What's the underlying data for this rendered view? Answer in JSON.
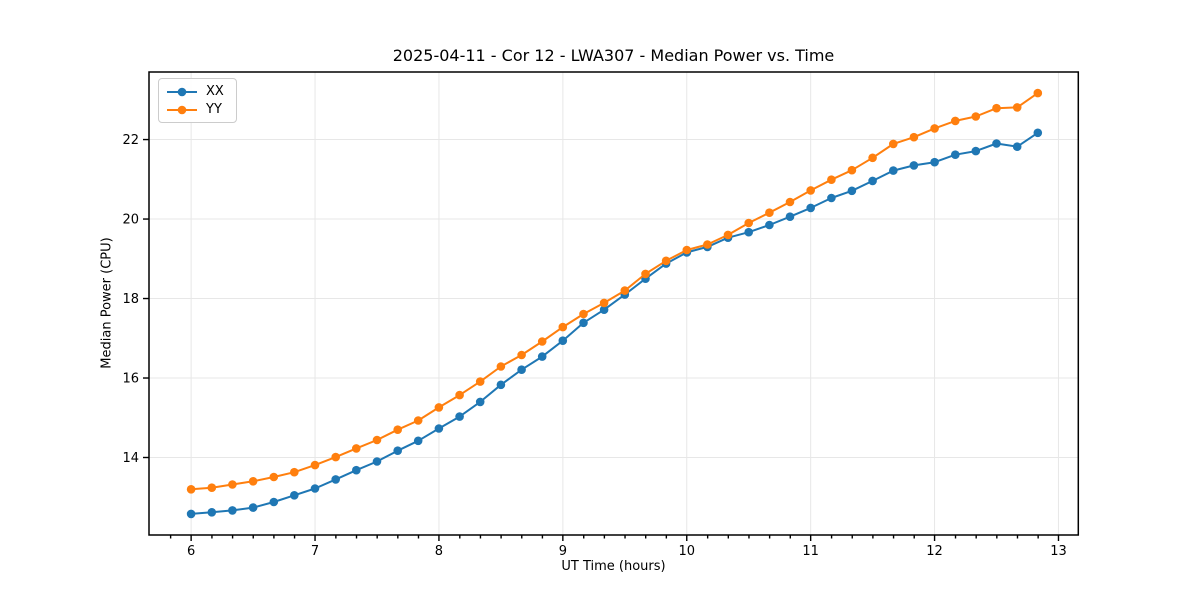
{
  "figure_title": "2025-04-11 - Cor 12 - LWA307 - Median Power vs. Time",
  "chart_data": {
    "type": "line",
    "title": "2025-04-11 - Cor 12 - LWA307 - Median Power vs. Time",
    "xlabel": "UT Time (hours)",
    "ylabel": "Median Power (CPU)",
    "xlim": [
      5.66,
      13.16
    ],
    "ylim": [
      12.05,
      23.7
    ],
    "x_ticks": [
      6,
      7,
      8,
      9,
      10,
      11,
      12,
      13
    ],
    "y_ticks": [
      14,
      16,
      18,
      20,
      22
    ],
    "x_minor_tick_step": 0.1667,
    "grid": true,
    "grid_color": "#e7e7e7",
    "legend_position": "upper-left",
    "marker": "circle",
    "x": [
      6.0,
      6.167,
      6.333,
      6.5,
      6.667,
      6.833,
      7.0,
      7.167,
      7.333,
      7.5,
      7.667,
      7.833,
      8.0,
      8.167,
      8.333,
      8.5,
      8.667,
      8.833,
      9.0,
      9.167,
      9.333,
      9.5,
      9.667,
      9.833,
      10.0,
      10.167,
      10.333,
      10.5,
      10.667,
      10.833,
      11.0,
      11.167,
      11.333,
      11.5,
      11.667,
      11.833,
      12.0,
      12.167,
      12.333,
      12.5,
      12.667,
      12.833
    ],
    "series": [
      {
        "name": "XX",
        "color": "#1f77b4",
        "values": [
          12.58,
          12.62,
          12.67,
          12.74,
          12.88,
          13.05,
          13.22,
          13.45,
          13.68,
          13.9,
          14.17,
          14.42,
          14.73,
          15.03,
          15.4,
          15.83,
          16.21,
          16.54,
          16.94,
          17.39,
          17.72,
          18.1,
          18.5,
          18.88,
          19.16,
          19.3,
          19.53,
          19.67,
          19.85,
          20.06,
          20.28,
          20.53,
          20.71,
          20.96,
          21.22,
          21.35,
          21.43,
          21.62,
          21.71,
          21.9,
          21.82,
          22.17
        ]
      },
      {
        "name": "YY",
        "color": "#ff7f0e",
        "values": [
          13.2,
          13.24,
          13.32,
          13.4,
          13.51,
          13.63,
          13.81,
          14.01,
          14.23,
          14.44,
          14.7,
          14.93,
          15.26,
          15.57,
          15.91,
          16.29,
          16.58,
          16.92,
          17.28,
          17.61,
          17.89,
          18.2,
          18.62,
          18.95,
          19.22,
          19.36,
          19.6,
          19.9,
          20.16,
          20.43,
          20.72,
          20.99,
          21.23,
          21.54,
          21.89,
          22.06,
          22.28,
          22.47,
          22.58,
          22.79,
          22.81,
          23.17
        ]
      }
    ]
  }
}
